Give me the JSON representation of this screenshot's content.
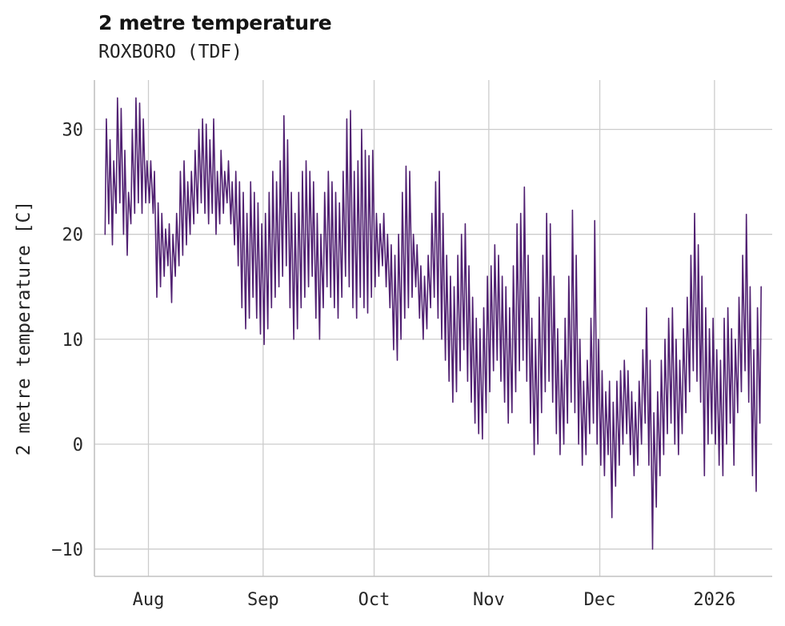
{
  "figure": {
    "title": "2 metre temperature",
    "subtitle": "ROXBORO (TDF)",
    "ylabel": "2 metre temperature [C]"
  },
  "chart_data": {
    "type": "line",
    "title": "2 metre temperature",
    "subtitle": "ROXBORO (TDF)",
    "xlabel": "",
    "ylabel": "2 metre temperature [C]",
    "legend": "none",
    "grid": "on",
    "background": "#ffffff",
    "grid_color": "#cccccc",
    "line_color": "#512172",
    "ylim": [
      -12.6,
      34.7
    ],
    "xlim": [
      -2.6,
      180.6
    ],
    "yticks": [
      -10,
      0,
      10,
      20,
      30
    ],
    "x_ticks": [
      {
        "label": "Aug",
        "day": 12
      },
      {
        "label": "Sep",
        "day": 43
      },
      {
        "label": "Oct",
        "day": 73
      },
      {
        "label": "Nov",
        "day": 104
      },
      {
        "label": "Dec",
        "day": 134
      },
      {
        "label": "2026",
        "day": 165
      }
    ],
    "x_start_day": 0,
    "series_name": "2 metre temperature",
    "daily_minmax": [
      [
        20,
        31
      ],
      [
        21,
        29
      ],
      [
        19,
        27
      ],
      [
        22,
        33
      ],
      [
        23,
        32
      ],
      [
        20,
        28
      ],
      [
        18,
        24
      ],
      [
        21,
        30
      ],
      [
        22,
        33
      ],
      [
        23,
        32.5
      ],
      [
        22,
        31
      ],
      [
        23,
        27
      ],
      [
        23,
        27
      ],
      [
        22,
        26
      ],
      [
        14,
        23
      ],
      [
        15,
        22
      ],
      [
        16,
        20.5
      ],
      [
        17,
        21
      ],
      [
        13.5,
        20
      ],
      [
        16,
        22
      ],
      [
        17,
        26
      ],
      [
        18,
        27
      ],
      [
        19,
        25
      ],
      [
        20,
        26
      ],
      [
        21,
        28
      ],
      [
        22,
        30
      ],
      [
        23,
        31
      ],
      [
        22,
        30.5
      ],
      [
        21,
        29
      ],
      [
        22,
        31
      ],
      [
        20,
        26
      ],
      [
        21,
        28
      ],
      [
        22,
        26
      ],
      [
        23,
        27
      ],
      [
        21,
        25
      ],
      [
        19,
        26
      ],
      [
        17,
        25
      ],
      [
        13,
        24
      ],
      [
        11,
        22
      ],
      [
        12,
        25
      ],
      [
        14,
        24
      ],
      [
        12,
        23
      ],
      [
        10.5,
        21
      ],
      [
        9.5,
        22
      ],
      [
        11,
        24
      ],
      [
        13,
        26
      ],
      [
        14,
        25
      ],
      [
        15,
        27
      ],
      [
        16,
        31.3
      ],
      [
        17,
        29
      ],
      [
        13,
        24
      ],
      [
        10,
        22
      ],
      [
        11,
        24
      ],
      [
        13,
        26
      ],
      [
        14,
        27
      ],
      [
        15,
        26
      ],
      [
        16,
        25
      ],
      [
        12,
        22
      ],
      [
        10,
        20
      ],
      [
        13,
        24
      ],
      [
        15,
        26
      ],
      [
        14,
        25
      ],
      [
        13,
        24
      ],
      [
        12,
        23
      ],
      [
        14,
        26
      ],
      [
        16,
        31
      ],
      [
        15,
        31.8
      ],
      [
        13,
        26
      ],
      [
        12,
        27
      ],
      [
        14,
        30
      ],
      [
        13,
        28
      ],
      [
        12.5,
        27.5
      ],
      [
        14,
        28
      ],
      [
        15,
        22
      ],
      [
        16,
        21
      ],
      [
        17,
        22
      ],
      [
        15,
        20
      ],
      [
        13,
        19
      ],
      [
        9,
        18
      ],
      [
        8,
        20
      ],
      [
        10,
        24
      ],
      [
        12,
        26.5
      ],
      [
        13,
        26
      ],
      [
        14,
        20
      ],
      [
        15,
        19
      ],
      [
        12,
        17
      ],
      [
        10,
        16
      ],
      [
        11,
        18
      ],
      [
        13,
        22
      ],
      [
        14,
        25
      ],
      [
        12,
        26
      ],
      [
        10,
        22
      ],
      [
        8,
        18
      ],
      [
        6,
        16
      ],
      [
        4,
        15
      ],
      [
        5,
        18
      ],
      [
        7,
        20
      ],
      [
        9,
        21
      ],
      [
        6,
        17
      ],
      [
        4,
        14
      ],
      [
        2,
        12
      ],
      [
        1,
        11
      ],
      [
        0.5,
        13
      ],
      [
        3,
        16
      ],
      [
        5,
        17
      ],
      [
        7,
        19
      ],
      [
        8,
        18
      ],
      [
        6,
        16
      ],
      [
        4,
        15
      ],
      [
        2,
        13
      ],
      [
        3,
        17
      ],
      [
        5,
        21
      ],
      [
        7,
        22
      ],
      [
        8,
        24.5
      ],
      [
        6,
        18
      ],
      [
        2,
        12
      ],
      [
        -1,
        10
      ],
      [
        0,
        14
      ],
      [
        3,
        18
      ],
      [
        5,
        22
      ],
      [
        6,
        21
      ],
      [
        4,
        16
      ],
      [
        1,
        11
      ],
      [
        -1,
        8
      ],
      [
        0,
        12
      ],
      [
        2,
        16
      ],
      [
        4,
        22.3
      ],
      [
        3,
        18
      ],
      [
        0,
        10
      ],
      [
        -2,
        6
      ],
      [
        -1,
        8
      ],
      [
        1,
        12
      ],
      [
        2,
        21.3
      ],
      [
        0,
        10
      ],
      [
        -2,
        7
      ],
      [
        -3,
        5
      ],
      [
        -1,
        6
      ],
      [
        -7,
        4
      ],
      [
        -4,
        6
      ],
      [
        -2,
        7
      ],
      [
        0,
        8
      ],
      [
        1,
        7
      ],
      [
        -1,
        5
      ],
      [
        -3,
        4
      ],
      [
        -2,
        6
      ],
      [
        0,
        9
      ],
      [
        2,
        13
      ],
      [
        -2,
        8
      ],
      [
        -10,
        3
      ],
      [
        -6,
        5
      ],
      [
        -3,
        8
      ],
      [
        -1,
        10
      ],
      [
        1,
        12
      ],
      [
        2,
        13
      ],
      [
        0,
        10
      ],
      [
        -1,
        8
      ],
      [
        1,
        11
      ],
      [
        3,
        14
      ],
      [
        5,
        18
      ],
      [
        7,
        22
      ],
      [
        6,
        19
      ],
      [
        4,
        16
      ],
      [
        -3,
        13
      ],
      [
        0,
        11
      ],
      [
        1,
        12
      ],
      [
        0,
        9
      ],
      [
        -2,
        8
      ],
      [
        -3,
        12
      ],
      [
        0,
        13
      ],
      [
        2,
        11
      ],
      [
        -2,
        10
      ],
      [
        3,
        14
      ],
      [
        5,
        18
      ],
      [
        7,
        21.9
      ],
      [
        4,
        15
      ],
      [
        -3,
        9
      ],
      [
        -4.5,
        13
      ],
      [
        2,
        15
      ]
    ]
  }
}
